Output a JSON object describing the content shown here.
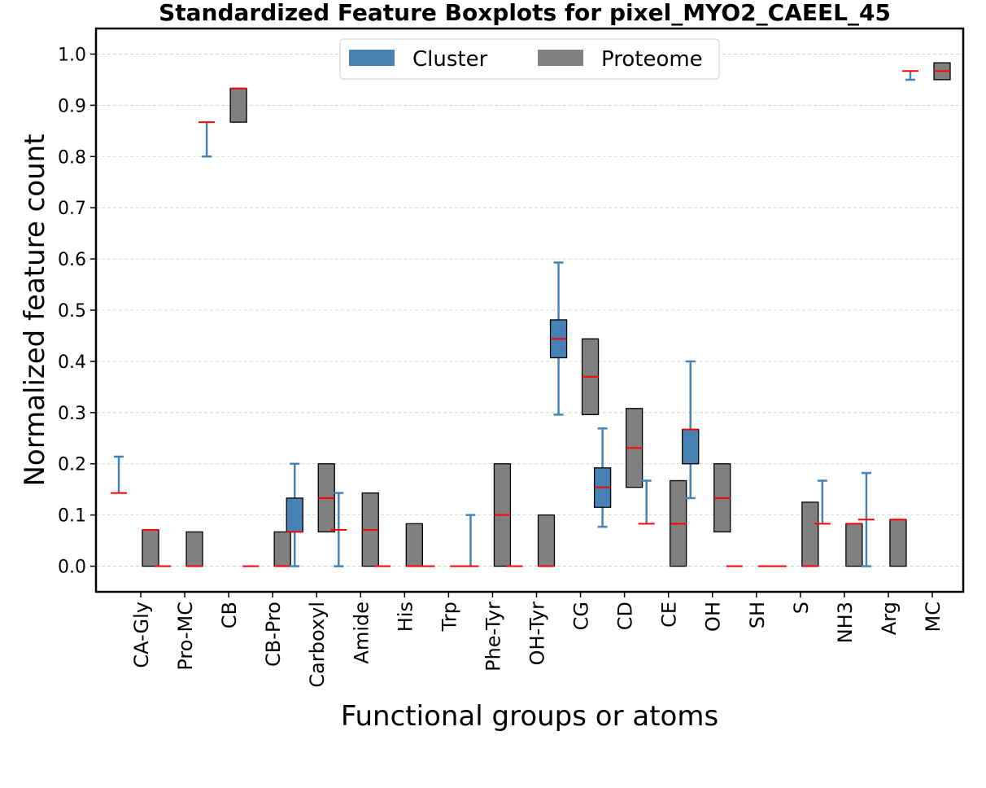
{
  "chart_data": {
    "type": "boxplot",
    "title": "Standardized Feature Boxplots for pixel_MYO2_CAEEL_45",
    "xlabel": "Functional groups or atoms",
    "ylabel": "Normalized feature count",
    "ylim": [
      -0.05,
      1.05
    ],
    "yticks": [
      "0.0",
      "0.1",
      "0.2",
      "0.3",
      "0.4",
      "0.5",
      "0.6",
      "0.7",
      "0.8",
      "0.9",
      "1.0"
    ],
    "grid": "y-dashed",
    "legend_position": "top-center",
    "colors": {
      "cluster": "#4682b4",
      "proteome": "#808080",
      "median": "#ff0000",
      "edge": "#000000"
    },
    "categories": [
      "CA-Gly",
      "Pro-MC",
      "CB",
      "CB-Pro",
      "Carboxyl",
      "Amide",
      "His",
      "Trp",
      "Phe-Tyr",
      "OH-Tyr",
      "CG",
      "CD",
      "CE",
      "OH",
      "SH",
      "S",
      "NH3",
      "Arg",
      "MC"
    ],
    "series": [
      {
        "name": "Cluster",
        "boxes": [
          {
            "q1": 0.143,
            "median": 0.143,
            "q3": 0.143,
            "whislo": 0.143,
            "whishi": 0.214
          },
          {
            "q1": 0.0,
            "median": 0.0,
            "q3": 0.0,
            "whislo": 0.0,
            "whishi": 0.0
          },
          {
            "q1": 0.867,
            "median": 0.867,
            "q3": 0.867,
            "whislo": 0.8,
            "whishi": 0.867
          },
          {
            "q1": 0.0,
            "median": 0.0,
            "q3": 0.0,
            "whislo": 0.0,
            "whishi": 0.0
          },
          {
            "q1": 0.067,
            "median": 0.067,
            "q3": 0.133,
            "whislo": 0.0,
            "whishi": 0.2
          },
          {
            "q1": 0.071,
            "median": 0.071,
            "q3": 0.071,
            "whislo": 0.0,
            "whishi": 0.143
          },
          {
            "q1": 0.0,
            "median": 0.0,
            "q3": 0.0,
            "whislo": 0.0,
            "whishi": 0.0
          },
          {
            "q1": 0.0,
            "median": 0.0,
            "q3": 0.0,
            "whislo": 0.0,
            "whishi": 0.0
          },
          {
            "q1": 0.0,
            "median": 0.0,
            "q3": 0.0,
            "whislo": 0.0,
            "whishi": 0.1
          },
          {
            "q1": 0.0,
            "median": 0.0,
            "q3": 0.0,
            "whislo": 0.0,
            "whishi": 0.0
          },
          {
            "q1": 0.407,
            "median": 0.444,
            "q3": 0.481,
            "whislo": 0.296,
            "whishi": 0.593
          },
          {
            "q1": 0.115,
            "median": 0.154,
            "q3": 0.192,
            "whislo": 0.077,
            "whishi": 0.269
          },
          {
            "q1": 0.083,
            "median": 0.083,
            "q3": 0.083,
            "whislo": 0.083,
            "whishi": 0.167
          },
          {
            "q1": 0.2,
            "median": 0.267,
            "q3": 0.267,
            "whislo": 0.133,
            "whishi": 0.4
          },
          {
            "q1": 0.0,
            "median": 0.0,
            "q3": 0.0,
            "whislo": 0.0,
            "whishi": 0.0
          },
          {
            "q1": 0.0,
            "median": 0.0,
            "q3": 0.0,
            "whislo": 0.0,
            "whishi": 0.0
          },
          {
            "q1": 0.083,
            "median": 0.083,
            "q3": 0.083,
            "whislo": 0.083,
            "whishi": 0.167
          },
          {
            "q1": 0.091,
            "median": 0.091,
            "q3": 0.091,
            "whislo": 0.0,
            "whishi": 0.182
          },
          {
            "q1": 0.967,
            "median": 0.967,
            "q3": 0.967,
            "whislo": 0.95,
            "whishi": 0.967
          }
        ]
      },
      {
        "name": "Proteome",
        "boxes": [
          {
            "q1": 0.0,
            "median": 0.071,
            "q3": 0.071
          },
          {
            "q1": 0.0,
            "median": 0.0,
            "q3": 0.067
          },
          {
            "q1": 0.867,
            "median": 0.933,
            "q3": 0.933
          },
          {
            "q1": 0.0,
            "median": 0.0,
            "q3": 0.067
          },
          {
            "q1": 0.067,
            "median": 0.133,
            "q3": 0.2
          },
          {
            "q1": 0.0,
            "median": 0.071,
            "q3": 0.143
          },
          {
            "q1": 0.0,
            "median": 0.0,
            "q3": 0.083
          },
          {
            "q1": 0.0,
            "median": 0.0,
            "q3": 0.0
          },
          {
            "q1": 0.0,
            "median": 0.1,
            "q3": 0.2
          },
          {
            "q1": 0.0,
            "median": 0.0,
            "q3": 0.1
          },
          {
            "q1": 0.296,
            "median": 0.37,
            "q3": 0.444
          },
          {
            "q1": 0.154,
            "median": 0.231,
            "q3": 0.308
          },
          {
            "q1": 0.0,
            "median": 0.083,
            "q3": 0.167
          },
          {
            "q1": 0.067,
            "median": 0.133,
            "q3": 0.2
          },
          {
            "q1": 0.0,
            "median": 0.0,
            "q3": 0.0
          },
          {
            "q1": 0.0,
            "median": 0.0,
            "q3": 0.125
          },
          {
            "q1": 0.0,
            "median": 0.083,
            "q3": 0.083
          },
          {
            "q1": 0.0,
            "median": 0.091,
            "q3": 0.091
          },
          {
            "q1": 0.95,
            "median": 0.967,
            "q3": 0.983
          }
        ]
      }
    ]
  }
}
